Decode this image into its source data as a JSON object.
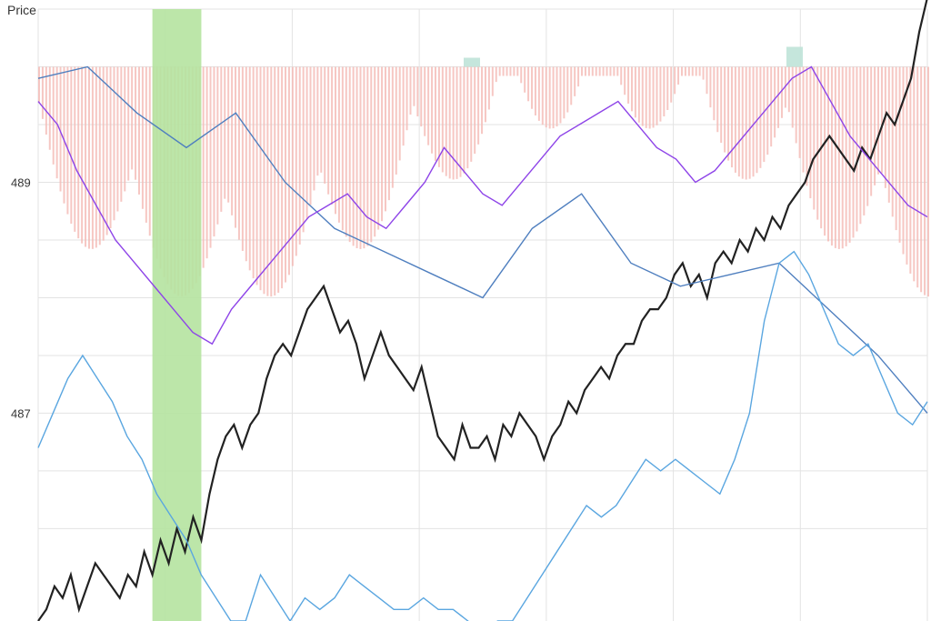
{
  "chart_data": {
    "type": "line",
    "title": "",
    "ylabel": "Price",
    "xlabel": "",
    "ylim": [
      485.2,
      490.5
    ],
    "yticks_labeled": [
      489,
      487
    ],
    "grid": true,
    "highlight_band": {
      "from_index": 14,
      "to_index": 20,
      "color": "#b5e3a0"
    },
    "series": [
      {
        "key": "price",
        "color": "#222222",
        "values": [
          485.2,
          485.3,
          485.5,
          485.4,
          485.6,
          485.3,
          485.5,
          485.7,
          485.6,
          485.5,
          485.4,
          485.6,
          485.5,
          485.8,
          485.6,
          485.9,
          485.7,
          486.0,
          485.8,
          486.1,
          485.9,
          486.3,
          486.6,
          486.8,
          486.9,
          486.7,
          486.9,
          487.0,
          487.3,
          487.5,
          487.6,
          487.5,
          487.7,
          487.9,
          488.0,
          488.1,
          487.9,
          487.7,
          487.8,
          487.6,
          487.3,
          487.5,
          487.7,
          487.5,
          487.4,
          487.3,
          487.2,
          487.4,
          487.1,
          486.8,
          486.7,
          486.6,
          486.9,
          486.7,
          486.7,
          486.8,
          486.6,
          486.9,
          486.8,
          487.0,
          486.9,
          486.8,
          486.6,
          486.8,
          486.9,
          487.1,
          487.0,
          487.2,
          487.3,
          487.4,
          487.3,
          487.5,
          487.6,
          487.6,
          487.8,
          487.9,
          487.9,
          488.0,
          488.2,
          488.3,
          488.1,
          488.2,
          488.0,
          488.3,
          488.4,
          488.3,
          488.5,
          488.4,
          488.6,
          488.5,
          488.7,
          488.6,
          488.8,
          488.9,
          489.0,
          489.2,
          489.3,
          489.4,
          489.3,
          489.2,
          489.1,
          489.3,
          489.2,
          489.4,
          489.6,
          489.5,
          489.7,
          489.9,
          490.3,
          490.6
        ],
        "labels_visible": false
      },
      {
        "key": "ma-blue",
        "color": "#4f7fbf",
        "values": [
          489.9,
          490.0,
          489.6,
          489.3,
          489.6,
          489.0,
          488.6,
          488.4,
          488.2,
          488.0,
          488.6,
          488.9,
          488.3,
          488.1,
          488.2,
          488.3,
          487.9,
          487.5,
          487.0
        ],
        "labels_visible": false
      },
      {
        "key": "ma-lightblue",
        "color": "#5aa6e0",
        "values": [
          486.7,
          487.0,
          487.3,
          487.5,
          487.3,
          487.1,
          486.8,
          486.6,
          486.3,
          486.1,
          485.9,
          485.6,
          485.4,
          485.2,
          485.2,
          485.6,
          485.4,
          485.2,
          485.4,
          485.3,
          485.4,
          485.6,
          485.5,
          485.4,
          485.3,
          485.3,
          485.4,
          485.3,
          485.3,
          485.2,
          485.1,
          485.2,
          485.2,
          485.4,
          485.6,
          485.8,
          486.0,
          486.2,
          486.1,
          486.2,
          486.4,
          486.6,
          486.5,
          486.6,
          486.5,
          486.4,
          486.3,
          486.6,
          487.0,
          487.8,
          488.3,
          488.4,
          488.2,
          487.9,
          487.6,
          487.5,
          487.6,
          487.3,
          487.0,
          486.9,
          487.1
        ],
        "labels_visible": false
      },
      {
        "key": "ma-purple",
        "color": "#8e44e8",
        "values": [
          489.7,
          489.5,
          489.1,
          488.8,
          488.5,
          488.3,
          488.1,
          487.9,
          487.7,
          487.6,
          487.9,
          488.1,
          488.3,
          488.5,
          488.7,
          488.8,
          488.9,
          488.7,
          488.6,
          488.8,
          489.0,
          489.3,
          489.1,
          488.9,
          488.8,
          489.0,
          489.2,
          489.4,
          489.5,
          489.6,
          489.7,
          489.5,
          489.3,
          489.2,
          489.0,
          489.1,
          489.3,
          489.5,
          489.7,
          489.9,
          490.0,
          489.7,
          489.4,
          489.2,
          489.0,
          488.8,
          488.7
        ],
        "labels_visible": false
      }
    ],
    "volume_overlay": {
      "baseline": "top",
      "red": "#f4b9b4",
      "green": "#bfe3d8"
    }
  }
}
